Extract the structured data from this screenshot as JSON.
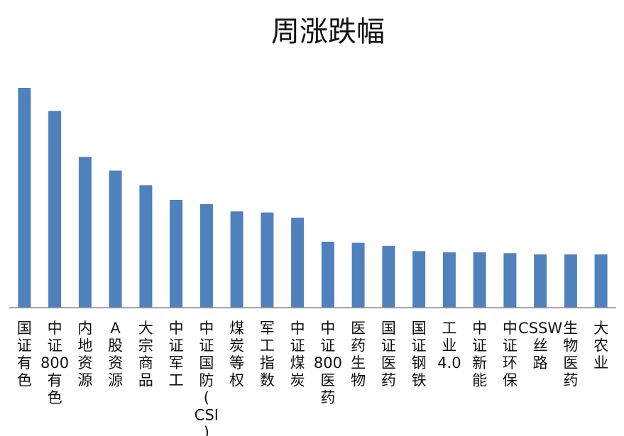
{
  "chart_data": {
    "type": "bar",
    "title": "周涨跌幅",
    "xlabel": "",
    "ylabel": "",
    "ylim": [
      0,
      10.5
    ],
    "grid": false,
    "legend": "none",
    "bar_color": "#4F81BD",
    "axis_color": "#8C8C8C",
    "categories": [
      "国证有色",
      "中证800有色",
      "内地资源",
      "A股资源",
      "大宗商品",
      "中证军工",
      "中证国防(CSI)",
      "煤炭等权",
      "军工指数",
      "中证煤炭",
      "中证800医药",
      "医药生物",
      "国证医药",
      "国证钢铁",
      "工业4.0",
      "中证新能",
      "中证环保",
      "CSSW丝路",
      "生物医药",
      "大农业"
    ],
    "values": [
      10.5,
      9.4,
      7.2,
      6.55,
      5.85,
      5.15,
      4.95,
      4.6,
      4.55,
      4.3,
      3.15,
      3.1,
      2.95,
      2.7,
      2.65,
      2.65,
      2.6,
      2.55,
      2.55,
      2.55
    ]
  }
}
